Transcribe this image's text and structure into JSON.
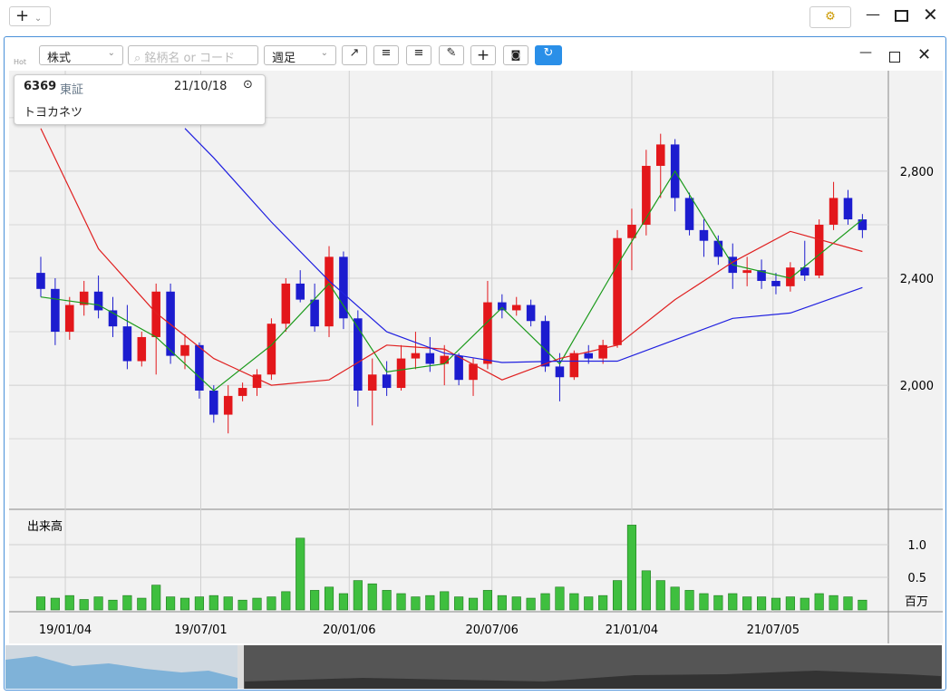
{
  "toolbar": {
    "hot": "Hot",
    "market": "株式",
    "search_placeholder": "銘柄名 or コード",
    "period": "週足"
  },
  "info": {
    "code": "6369",
    "exchange": "東証",
    "date": "21/10/18",
    "name": "トヨカネツ"
  },
  "chart_data": {
    "type": "candlestick",
    "ohlc": [
      [
        2420,
        2480,
        2330,
        2360
      ],
      [
        2360,
        2400,
        2150,
        2200
      ],
      [
        2200,
        2330,
        2170,
        2300
      ],
      [
        2300,
        2390,
        2260,
        2350
      ],
      [
        2350,
        2410,
        2250,
        2280
      ],
      [
        2280,
        2330,
        2180,
        2220
      ],
      [
        2220,
        2300,
        2060,
        2090
      ],
      [
        2090,
        2200,
        2070,
        2180
      ],
      [
        2180,
        2380,
        2040,
        2350
      ],
      [
        2350,
        2380,
        2080,
        2110
      ],
      [
        2110,
        2190,
        2060,
        2150
      ],
      [
        2150,
        2160,
        1950,
        1980
      ],
      [
        1980,
        2000,
        1860,
        1890
      ],
      [
        1890,
        2000,
        1820,
        1960
      ],
      [
        1960,
        2010,
        1940,
        1990
      ],
      [
        1990,
        2060,
        1960,
        2040
      ],
      [
        2040,
        2250,
        2020,
        2230
      ],
      [
        2230,
        2400,
        2200,
        2380
      ],
      [
        2380,
        2430,
        2310,
        2320
      ],
      [
        2320,
        2380,
        2200,
        2220
      ],
      [
        2220,
        2520,
        2180,
        2480
      ],
      [
        2480,
        2500,
        2210,
        2250
      ],
      [
        2250,
        2280,
        1920,
        1980
      ],
      [
        1980,
        2100,
        1850,
        2040
      ],
      [
        2040,
        2090,
        1960,
        1990
      ],
      [
        1990,
        2150,
        1980,
        2100
      ],
      [
        2100,
        2200,
        2060,
        2120
      ],
      [
        2120,
        2180,
        2050,
        2080
      ],
      [
        2080,
        2150,
        2000,
        2110
      ],
      [
        2110,
        2120,
        2000,
        2020
      ],
      [
        2020,
        2100,
        1960,
        2080
      ],
      [
        2080,
        2390,
        2060,
        2310
      ],
      [
        2310,
        2340,
        2250,
        2280
      ],
      [
        2280,
        2330,
        2260,
        2300
      ],
      [
        2300,
        2320,
        2220,
        2240
      ],
      [
        2240,
        2260,
        2050,
        2070
      ],
      [
        2070,
        2120,
        1940,
        2030
      ],
      [
        2030,
        2130,
        2020,
        2120
      ],
      [
        2120,
        2150,
        2080,
        2100
      ],
      [
        2100,
        2170,
        2080,
        2150
      ],
      [
        2150,
        2580,
        2140,
        2550
      ],
      [
        2550,
        2660,
        2430,
        2600
      ],
      [
        2600,
        2880,
        2560,
        2820
      ],
      [
        2820,
        2940,
        2700,
        2900
      ],
      [
        2900,
        2920,
        2650,
        2700
      ],
      [
        2700,
        2720,
        2560,
        2580
      ],
      [
        2580,
        2620,
        2480,
        2540
      ],
      [
        2540,
        2560,
        2450,
        2480
      ],
      [
        2480,
        2530,
        2360,
        2420
      ],
      [
        2420,
        2480,
        2370,
        2430
      ],
      [
        2430,
        2470,
        2360,
        2390
      ],
      [
        2390,
        2420,
        2340,
        2370
      ],
      [
        2370,
        2460,
        2350,
        2440
      ],
      [
        2440,
        2540,
        2390,
        2410
      ],
      [
        2410,
        2620,
        2400,
        2600
      ],
      [
        2600,
        2760,
        2580,
        2700
      ],
      [
        2700,
        2730,
        2600,
        2620
      ],
      [
        2620,
        2640,
        2550,
        2580
      ]
    ],
    "up_color": "#e3171b",
    "down_color": "#1c1ccf",
    "lines": [
      {
        "color": "#1a9a1a",
        "x": [
          0,
          4,
          8,
          12,
          16,
          20,
          24,
          28,
          32,
          36,
          40,
          44,
          48,
          52,
          57
        ],
        "values": [
          2330,
          2300,
          2180,
          1980,
          2150,
          2380,
          2050,
          2080,
          2290,
          2080,
          2450,
          2800,
          2450,
          2400,
          2620
        ]
      },
      {
        "color": "#e02020",
        "x": [
          0,
          4,
          8,
          12,
          16,
          20,
          24,
          28,
          32,
          36,
          40,
          44,
          48,
          52,
          57
        ],
        "values": [
          2960,
          2510,
          2270,
          2100,
          2000,
          2020,
          2150,
          2135,
          2020,
          2100,
          2150,
          2320,
          2460,
          2575,
          2500
        ]
      },
      {
        "color": "#2020e0",
        "x": [
          10,
          12,
          16,
          20,
          24,
          28,
          32,
          36,
          40,
          44,
          48,
          52,
          57
        ],
        "values": [
          2960,
          2850,
          2610,
          2390,
          2200,
          2120,
          2085,
          2090,
          2090,
          2170,
          2250,
          2270,
          2365
        ]
      }
    ],
    "xlim": [
      -2.2,
      58.8
    ],
    "xticks": [
      {
        "value": 1.7,
        "label": "19/01/04"
      },
      {
        "value": 11.1,
        "label": "19/07/01"
      },
      {
        "value": 21.4,
        "label": "20/01/06"
      },
      {
        "value": 31.3,
        "label": "20/07/06"
      },
      {
        "value": 41,
        "label": "21/01/04"
      },
      {
        "value": 50.8,
        "label": "21/07/05"
      }
    ],
    "ylim": [
      1543,
      3169
    ],
    "yticks": [
      {
        "value": 2000,
        "label": "2,000"
      },
      {
        "value": 2400,
        "label": "2,400"
      },
      {
        "value": 2800,
        "label": "2,800"
      }
    ],
    "minor_yticks": [
      1800,
      2200,
      2600,
      3000
    ],
    "volume": {
      "title": "出来高",
      "unit": "百万",
      "color": "#3fbf3f",
      "values": [
        0.2,
        0.18,
        0.22,
        0.16,
        0.2,
        0.15,
        0.22,
        0.18,
        0.38,
        0.2,
        0.18,
        0.2,
        0.22,
        0.2,
        0.15,
        0.18,
        0.2,
        0.28,
        1.1,
        0.3,
        0.35,
        0.25,
        0.45,
        0.4,
        0.3,
        0.25,
        0.2,
        0.22,
        0.28,
        0.2,
        0.18,
        0.3,
        0.22,
        0.2,
        0.18,
        0.25,
        0.35,
        0.25,
        0.2,
        0.22,
        0.45,
        1.3,
        0.6,
        0.45,
        0.35,
        0.3,
        0.25,
        0.22,
        0.25,
        0.2,
        0.2,
        0.18,
        0.2,
        0.18,
        0.25,
        0.22,
        0.2,
        0.15
      ],
      "ylim": [
        0,
        1.5
      ],
      "yticks": [
        {
          "value": 0.5,
          "label": "0.5"
        },
        {
          "value": 1,
          "label": "1.0"
        }
      ]
    }
  }
}
